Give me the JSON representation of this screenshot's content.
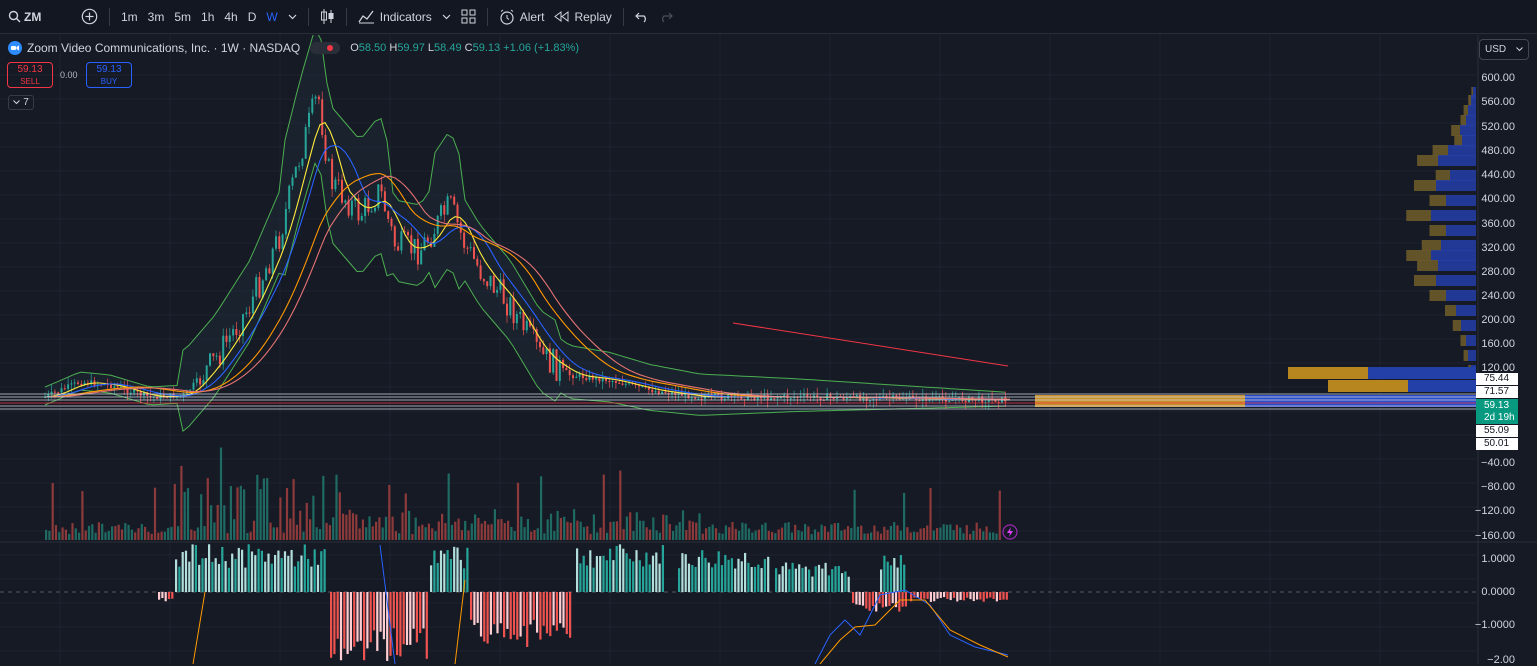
{
  "toolbar": {
    "symbol": "ZM",
    "intervals": [
      {
        "label": "1m"
      },
      {
        "label": "3m"
      },
      {
        "label": "5m"
      },
      {
        "label": "1h"
      },
      {
        "label": "4h"
      },
      {
        "label": "D"
      },
      {
        "label": "W",
        "active": true
      }
    ],
    "indicators_label": "Indicators",
    "alert_label": "Alert",
    "replay_label": "Replay"
  },
  "legend": {
    "title": "Zoom Video Communications, Inc. · 1W · NASDAQ",
    "o_label": "O",
    "o_value": "58.50",
    "h_label": "H",
    "h_value": "59.97",
    "l_label": "L",
    "l_value": "58.49",
    "c_label": "C",
    "c_value": "59.13",
    "change": "+1.06 (+1.83%)"
  },
  "trade": {
    "sell_price": "59.13",
    "sell_label": "SELL",
    "spread": "0.00",
    "buy_price": "59.13",
    "buy_label": "BUY",
    "indicator_count": "7"
  },
  "currency": "USD",
  "axis": {
    "price_ticks": [
      "600.00",
      "560.00",
      "520.00",
      "480.00",
      "440.00",
      "400.00",
      "360.00",
      "320.00",
      "280.00",
      "240.00",
      "200.00",
      "160.00",
      "120.00"
    ],
    "volume_ticks": [
      "−40.00",
      "−80.00",
      "−120.00",
      "−160.00"
    ],
    "osc_ticks": [
      "1.0000",
      "0.0000",
      "−1.0000",
      "−2.00"
    ]
  },
  "price_tags": {
    "p1": "75.44",
    "p2": "71.57",
    "current": "59.13",
    "countdown": "2d 19h",
    "p3": "55.09",
    "p4": "50.01"
  },
  "colors": {
    "up": "#26a69a",
    "down": "#ef5350",
    "accent": "#2962ff",
    "background": "#161a25"
  }
}
